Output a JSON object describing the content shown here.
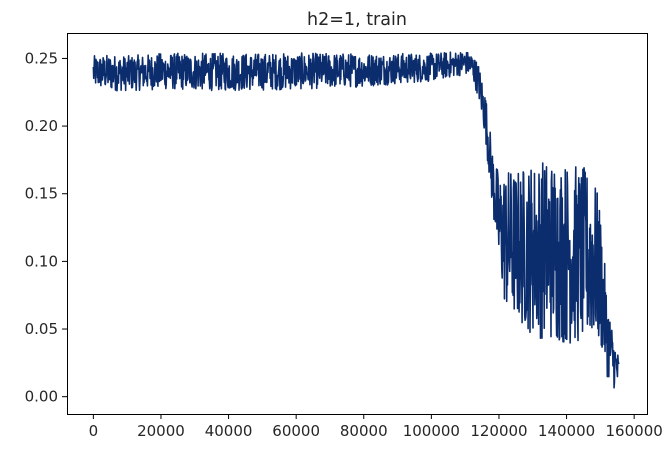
{
  "chart_data": {
    "type": "line",
    "title": "h2=1, train",
    "xlabel": "",
    "ylabel": "",
    "xlim": [
      -7800,
      163800
    ],
    "ylim": [
      -0.0128,
      0.2688
    ],
    "xticks": [
      0,
      20000,
      40000,
      60000,
      80000,
      100000,
      120000,
      140000,
      160000
    ],
    "xtick_labels": [
      "0",
      "20000",
      "40000",
      "60000",
      "80000",
      "100000",
      "120000",
      "140000",
      "160000"
    ],
    "yticks": [
      0.0,
      0.05,
      0.1,
      0.15,
      0.2,
      0.25
    ],
    "ytick_labels": [
      "0.00",
      "0.05",
      "0.10",
      "0.15",
      "0.20",
      "0.25"
    ],
    "grid": false,
    "legend": "none",
    "series": [
      {
        "color": "#0b2d6e",
        "envelope": {
          "x": [
            0,
            5000,
            10000,
            20000,
            40000,
            60000,
            80000,
            100000,
            110000,
            112000,
            114000,
            116000,
            118000,
            120000,
            122000,
            125000,
            130000,
            135000,
            140000,
            145000,
            148000,
            150000,
            152000,
            154000,
            155500
          ],
          "upper": [
            0.252,
            0.253,
            0.252,
            0.254,
            0.254,
            0.254,
            0.254,
            0.254,
            0.256,
            0.254,
            0.246,
            0.225,
            0.185,
            0.165,
            0.17,
            0.168,
            0.175,
            0.178,
            0.175,
            0.17,
            0.165,
            0.14,
            0.075,
            0.045,
            0.03
          ],
          "lower": [
            0.228,
            0.226,
            0.226,
            0.227,
            0.226,
            0.227,
            0.229,
            0.233,
            0.238,
            0.236,
            0.22,
            0.19,
            0.14,
            0.09,
            0.062,
            0.055,
            0.045,
            0.04,
            0.038,
            0.037,
            0.04,
            0.035,
            0.015,
            0.006,
            0.004
          ]
        }
      }
    ]
  }
}
